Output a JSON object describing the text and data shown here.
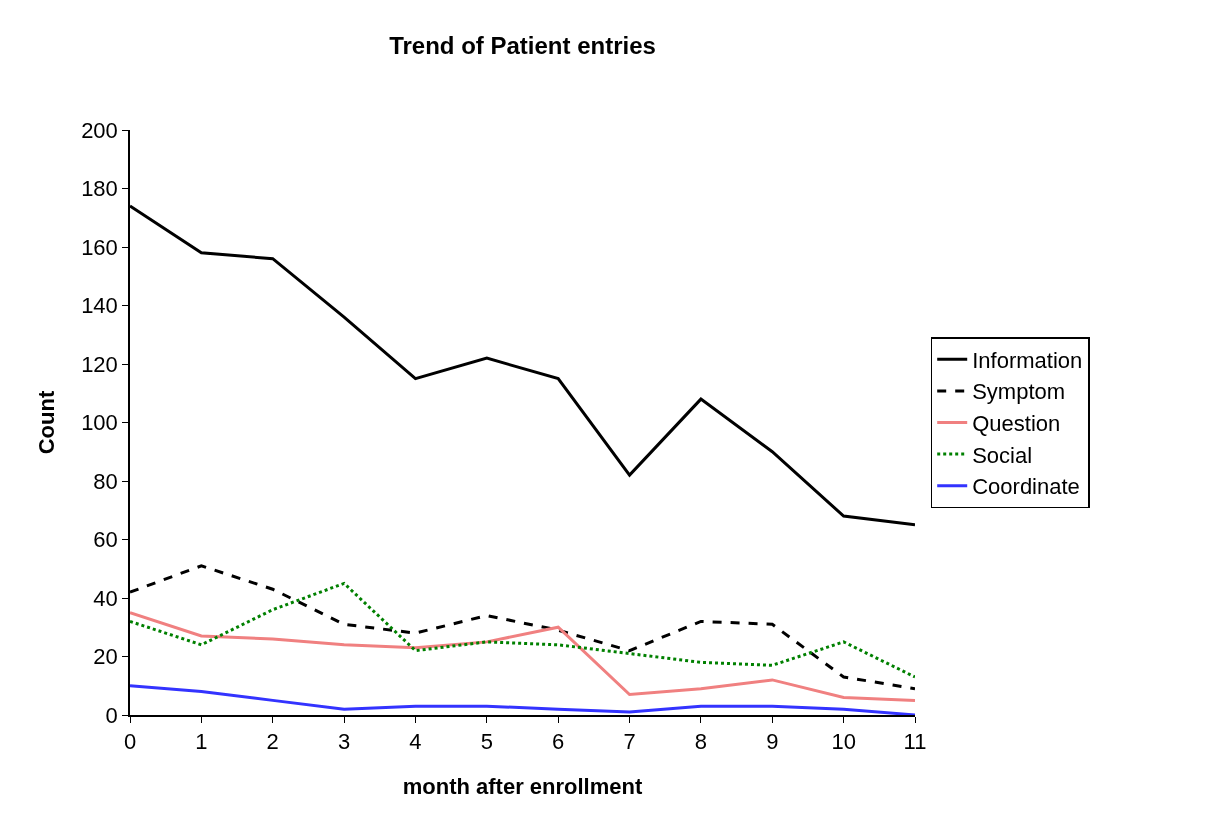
{
  "chart_data": {
    "type": "line",
    "title": "Trend of Patient entries",
    "xlabel": "month after enrollment",
    "ylabel": "Count",
    "x": [
      0,
      1,
      2,
      3,
      4,
      5,
      6,
      7,
      8,
      9,
      10,
      11
    ],
    "series": [
      {
        "name": "Information",
        "color": "#000000",
        "line_style": "solid",
        "values": [
          174,
          158,
          156,
          136,
          115,
          122,
          115,
          82,
          108,
          90,
          68,
          65
        ]
      },
      {
        "name": "Symptom",
        "color": "#000000",
        "line_style": "dashed",
        "values": [
          42,
          51,
          43,
          31,
          28,
          34,
          29,
          22,
          32,
          31,
          13,
          9
        ]
      },
      {
        "name": "Question",
        "color": "#f08080",
        "line_style": "solid",
        "values": [
          35,
          27,
          26,
          24,
          23,
          25,
          30,
          7,
          9,
          12,
          6,
          5
        ]
      },
      {
        "name": "Social",
        "color": "#008000",
        "line_style": "dotted",
        "values": [
          32,
          24,
          36,
          45,
          22,
          25,
          24,
          21,
          18,
          17,
          25,
          13
        ]
      },
      {
        "name": "Coordinate",
        "color": "#3333ff",
        "line_style": "solid",
        "values": [
          10,
          8,
          5,
          2,
          3,
          3,
          2,
          1,
          3,
          3,
          2,
          0
        ]
      }
    ],
    "xlim": [
      0,
      11
    ],
    "xticks": [
      0,
      1,
      2,
      3,
      4,
      5,
      6,
      7,
      8,
      9,
      10,
      11
    ],
    "ylim": [
      0,
      200
    ],
    "yticks": [
      0,
      20,
      40,
      60,
      80,
      100,
      120,
      140,
      160,
      180,
      200
    ],
    "grid": false,
    "legend": "right",
    "marker": "none"
  }
}
